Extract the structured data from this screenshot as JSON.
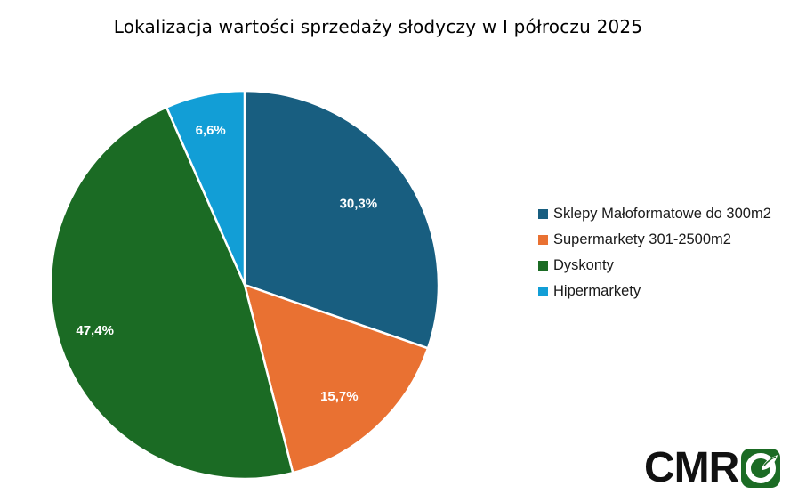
{
  "chart_data": {
    "type": "pie",
    "title": "Lokalizacja wartości sprzedaży słodyczy w I półroczu 2025",
    "slices": [
      {
        "name": "Sklepy Małoformatowe do 300m2",
        "value": 30.3,
        "label": "30,3%",
        "color": "#185e80"
      },
      {
        "name": "Supermarkety 301-2500m2",
        "value": 15.7,
        "label": "15,7%",
        "color": "#e97132"
      },
      {
        "name": "Dyskonty",
        "value": 47.4,
        "label": "47,4%",
        "color": "#1b6b24"
      },
      {
        "name": "Hipermarkety",
        "value": 6.6,
        "label": "6,6%",
        "color": "#129ed6"
      }
    ],
    "start_angle_deg": 0,
    "direction": "clockwise",
    "legend_position": "right"
  },
  "logo": {
    "text": "CMR",
    "mark_color": "#1b6b24",
    "mark_icon": "leaf-circle-icon"
  }
}
